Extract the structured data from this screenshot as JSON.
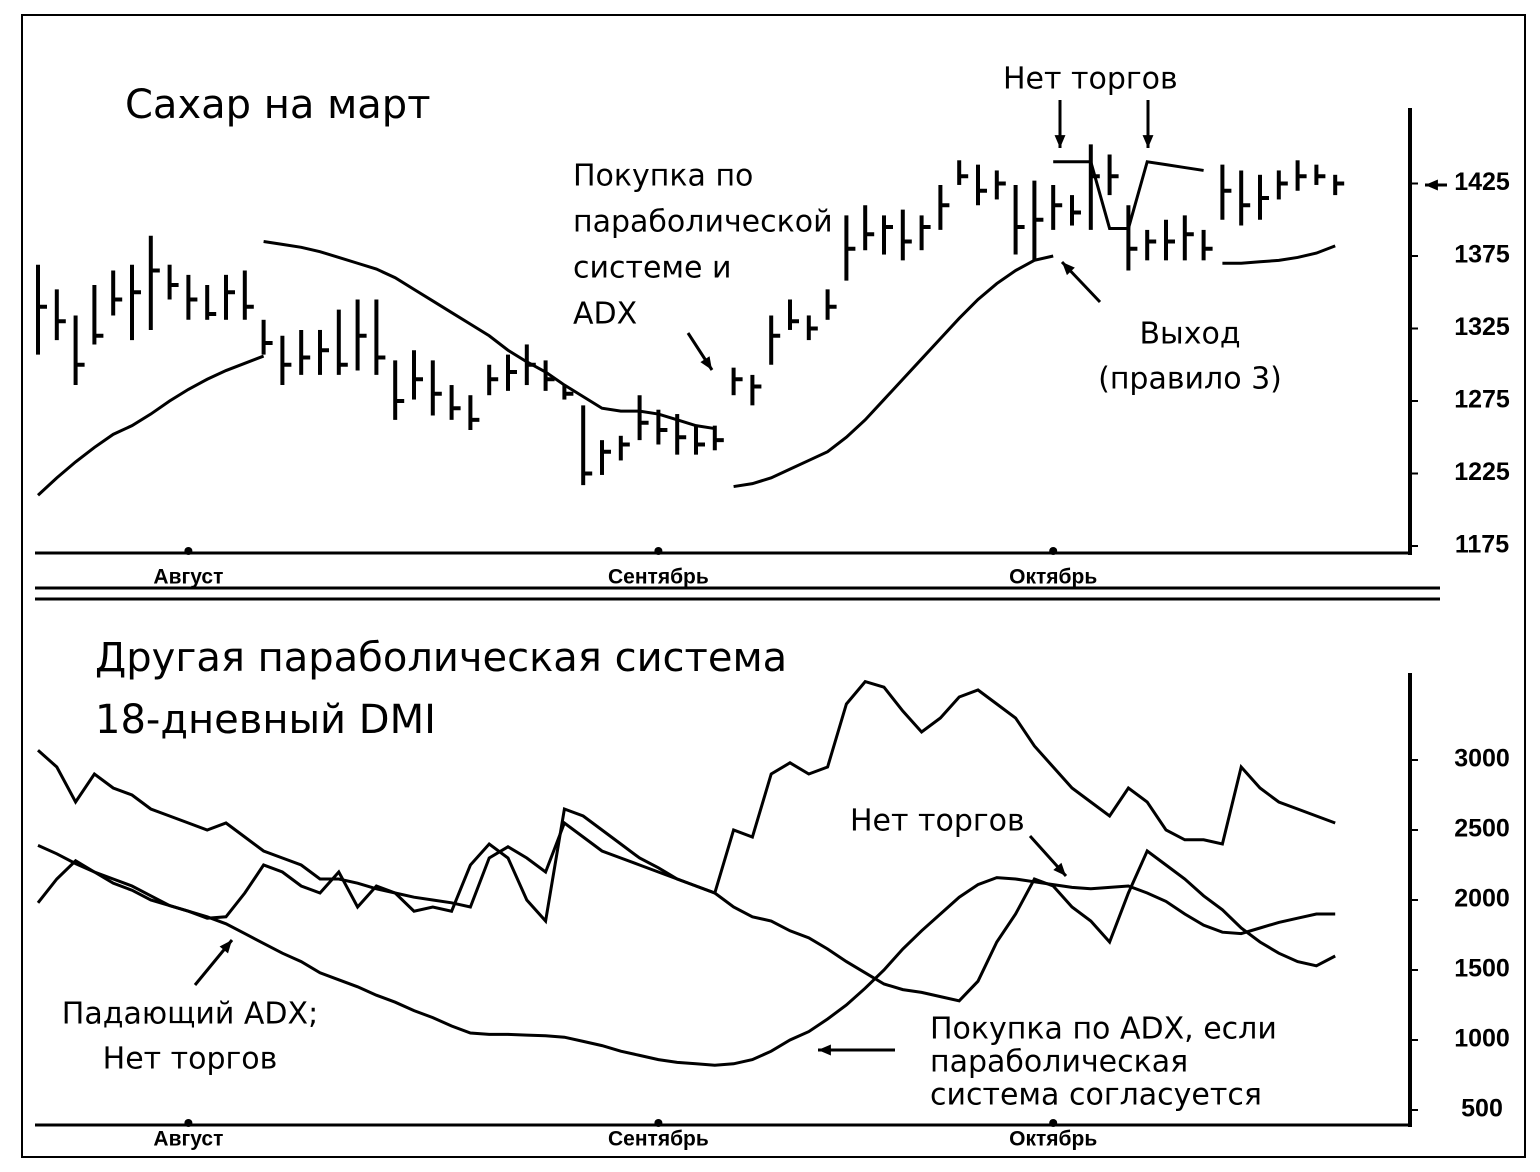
{
  "chart_data": [
    {
      "type": "ohlc",
      "title": "Сахар на март",
      "categories": [
        null,
        null,
        null,
        null,
        null,
        null,
        null,
        null,
        "Август",
        null,
        null,
        null,
        null,
        null,
        null,
        null,
        null,
        null,
        null,
        null,
        null,
        null,
        null,
        null,
        null,
        null,
        null,
        null,
        null,
        null,
        null,
        null,
        null,
        "Сентябрь",
        null,
        null,
        null,
        null,
        null,
        null,
        null,
        null,
        null,
        null,
        null,
        null,
        null,
        null,
        null,
        null,
        null,
        null,
        null,
        null,
        "Октябрь",
        null,
        null,
        null,
        null,
        null,
        null,
        null,
        null,
        null,
        null,
        null,
        null,
        null,
        null,
        null
      ],
      "high": [
        1369,
        1352,
        1334,
        1355,
        1365,
        1369,
        1389,
        1369,
        1362,
        1355,
        1362,
        1365,
        1331,
        1320,
        1324,
        1324,
        1338,
        1345,
        1345,
        1303,
        1310,
        1303,
        1286,
        1279,
        1300,
        1307,
        1314,
        1303,
        1286,
        1272,
        1248,
        1251,
        1279,
        1269,
        1266,
        1258,
        1258,
        1298,
        1293,
        1334,
        1345,
        1334,
        1352,
        1403,
        1410,
        1403,
        1407,
        1403,
        1424,
        1441,
        1438,
        1434,
        1424,
        1427,
        1424,
        1417,
        1452,
        1445,
        1410,
        1393,
        1400,
        1403,
        1393,
        1438,
        1434,
        1431,
        1434,
        1441,
        1438,
        1431
      ],
      "low": [
        1307,
        1317,
        1286,
        1314,
        1334,
        1317,
        1324,
        1345,
        1331,
        1331,
        1331,
        1331,
        1307,
        1286,
        1293,
        1293,
        1293,
        1296,
        1293,
        1262,
        1276,
        1265,
        1262,
        1255,
        1279,
        1282,
        1286,
        1282,
        1276,
        1217,
        1224,
        1234,
        1248,
        1245,
        1238,
        1238,
        1241,
        1279,
        1272,
        1300,
        1324,
        1317,
        1331,
        1358,
        1379,
        1376,
        1372,
        1379,
        1393,
        1424,
        1410,
        1414,
        1376,
        1372,
        1393,
        1396,
        1393,
        1417,
        1365,
        1372,
        1372,
        1372,
        1372,
        1400,
        1396,
        1400,
        1414,
        1420,
        1424,
        1417
      ],
      "close": [
        1340,
        1330,
        1300,
        1320,
        1345,
        1350,
        1365,
        1355,
        1345,
        1335,
        1350,
        1340,
        1315,
        1300,
        1305,
        1310,
        1300,
        1320,
        1305,
        1275,
        1290,
        1280,
        1270,
        1262,
        1290,
        1295,
        1300,
        1290,
        1280,
        1225,
        1240,
        1245,
        1260,
        1255,
        1250,
        1245,
        1248,
        1290,
        1285,
        1320,
        1330,
        1325,
        1340,
        1380,
        1390,
        1395,
        1385,
        1395,
        1410,
        1430,
        1420,
        1425,
        1395,
        1400,
        1410,
        1405,
        1430,
        1430,
        1380,
        1385,
        1385,
        1390,
        1380,
        1420,
        1410,
        1415,
        1425,
        1430,
        1430,
        1425
      ],
      "lines": [
        {
          "color": "#000000",
          "values": [
            1210,
            1222,
            1233,
            1243,
            1252,
            1258,
            1266,
            1275,
            1283,
            1290,
            1296,
            1301,
            1306,
            null,
            null,
            null,
            null,
            null,
            null,
            null,
            null,
            null,
            null,
            null,
            null,
            null,
            null,
            null,
            null,
            null,
            null,
            null,
            null,
            null,
            null,
            null,
            null,
            1216,
            1218,
            1222,
            1228,
            1234,
            1240,
            1250,
            1262,
            1276,
            1290,
            1304,
            1318,
            1332,
            1345,
            1356,
            1365,
            1372,
            1375,
            null,
            null,
            null,
            null,
            null,
            null,
            null,
            null,
            1370,
            1370,
            1371,
            1372,
            1374,
            1377,
            1382
          ]
        },
        {
          "color": "#000000",
          "values": [
            null,
            null,
            null,
            null,
            null,
            null,
            null,
            null,
            null,
            null,
            null,
            null,
            1385,
            1383,
            1381,
            1378,
            1374,
            1370,
            1366,
            1360,
            1352,
            1344,
            1336,
            1328,
            1320,
            1310,
            1302,
            1295,
            1286,
            1278,
            1270,
            1268,
            1268,
            1266,
            1262,
            1258,
            1256,
            null,
            null,
            null,
            null,
            null,
            null,
            null,
            null,
            null,
            null,
            null,
            null,
            null,
            null,
            null,
            null,
            null,
            1440,
            1440,
            1440,
            1394,
            1394,
            1440,
            1438,
            1436,
            1434,
            null,
            null,
            null,
            null,
            null,
            null,
            null
          ]
        }
      ],
      "color": "#000000",
      "ylim": [
        1175,
        1475
      ],
      "yticks": [
        1175,
        1225,
        1275,
        1325,
        1375,
        1425
      ],
      "annotations": [
        {
          "lines": [
            "Нет торгов"
          ]
        },
        {
          "lines": [
            "Покупка по",
            "параболической",
            "системе и",
            "ADX"
          ]
        },
        {
          "lines": [
            "Выход",
            "(правило 3)"
          ]
        }
      ]
    },
    {
      "type": "line",
      "title": [
        "Другая параболическая система",
        "18-дневный DMI"
      ],
      "categories": [
        null,
        null,
        null,
        null,
        null,
        null,
        null,
        null,
        "Август",
        null,
        null,
        null,
        null,
        null,
        null,
        null,
        null,
        null,
        null,
        null,
        null,
        null,
        null,
        null,
        null,
        null,
        null,
        null,
        null,
        null,
        null,
        null,
        null,
        "Сентябрь",
        null,
        null,
        null,
        null,
        null,
        null,
        null,
        null,
        null,
        null,
        null,
        null,
        null,
        null,
        null,
        null,
        null,
        null,
        null,
        null,
        "Октябрь",
        null,
        null,
        null,
        null,
        null,
        null,
        null,
        null,
        null,
        null,
        null,
        null,
        null,
        null,
        null
      ],
      "lines": [
        {
          "color": "#000000",
          "values": [
            3070,
            2950,
            2700,
            2900,
            2800,
            2750,
            2650,
            2600,
            2550,
            2500,
            2550,
            2450,
            2350,
            2300,
            2250,
            2150,
            2150,
            2120,
            2080,
            2050,
            2020,
            2000,
            1980,
            1950,
            2300,
            2380,
            2300,
            2200,
            2550,
            2450,
            2350,
            2300,
            2250,
            2200,
            2150,
            2100,
            2050,
            2500,
            2450,
            2900,
            2980,
            2900,
            2950,
            3400,
            3560,
            3520,
            3350,
            3200,
            3300,
            3450,
            3500,
            3400,
            3300,
            3100,
            2950,
            2800,
            2700,
            2600,
            2800,
            2700,
            2500,
            2430,
            2430,
            2400,
            2950,
            2800,
            2700,
            2650,
            2600,
            2550
          ]
        },
        {
          "color": "#000000",
          "values": [
            2390,
            2330,
            2260,
            2200,
            2150,
            2100,
            2030,
            1960,
            1920,
            1880,
            1830,
            1760,
            1690,
            1620,
            1560,
            1480,
            1430,
            1380,
            1320,
            1270,
            1210,
            1160,
            1100,
            1050,
            1040,
            1040,
            1035,
            1030,
            1020,
            990,
            960,
            920,
            890,
            860,
            840,
            830,
            820,
            830,
            860,
            920,
            1000,
            1060,
            1150,
            1250,
            1370,
            1500,
            1650,
            1780,
            1900,
            2020,
            2110,
            2160,
            2150,
            2130,
            2110,
            2090,
            2080,
            2090,
            2100,
            2050,
            1990,
            1900,
            1820,
            1770,
            1760,
            1800,
            1840,
            1870,
            1900,
            1900
          ]
        },
        {
          "color": "#000000",
          "values": [
            1980,
            2150,
            2280,
            2200,
            2120,
            2070,
            2000,
            1960,
            1920,
            1870,
            1880,
            2050,
            2250,
            2200,
            2100,
            2050,
            2200,
            1950,
            2100,
            2050,
            1920,
            1950,
            1920,
            2250,
            2400,
            2300,
            2000,
            1850,
            2650,
            2600,
            2500,
            2400,
            2300,
            2230,
            2150,
            2100,
            2050,
            1950,
            1880,
            1850,
            1780,
            1730,
            1650,
            1560,
            1480,
            1400,
            1360,
            1340,
            1310,
            1280,
            1420,
            1700,
            1900,
            2150,
            2100,
            1950,
            1850,
            1700,
            2050,
            2350,
            2250,
            2150,
            2030,
            1930,
            1800,
            1700,
            1620,
            1560,
            1530,
            1600
          ]
        }
      ],
      "ylim": [
        375,
        3600
      ],
      "yticks": [
        500,
        1000,
        1500,
        2000,
        2500,
        3000
      ],
      "annotations": [
        {
          "lines": [
            "Нет торгов"
          ]
        },
        {
          "lines": [
            "Падающий ADX;",
            "Нет торгов"
          ]
        },
        {
          "lines": [
            "Покупка по ADX, если",
            "параболическая",
            "система согласуется"
          ]
        }
      ]
    }
  ]
}
